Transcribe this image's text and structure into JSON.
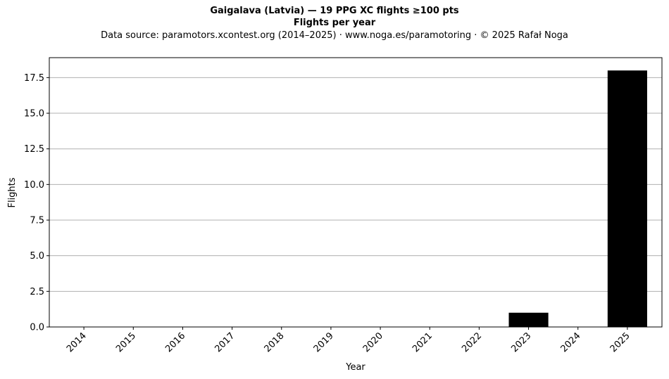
{
  "chart_data": {
    "type": "bar",
    "title": "Gaigalava (Latvia)  —  19 PPG XC flights ≥100 pts",
    "subtitle": "Flights per year",
    "source_note": "Data source: paramotors.xcontest.org (2014–2025)  ·  www.noga.es/paramotoring  ·  © 2025 Rafał Noga",
    "xlabel": "Year",
    "ylabel": "Flights",
    "categories": [
      "2014",
      "2015",
      "2016",
      "2017",
      "2018",
      "2019",
      "2020",
      "2021",
      "2022",
      "2023",
      "2024",
      "2025"
    ],
    "values": [
      0,
      0,
      0,
      0,
      0,
      0,
      0,
      0,
      0,
      1,
      0,
      18
    ],
    "ylim": [
      0,
      18.9
    ],
    "yticks": [
      0.0,
      2.5,
      5.0,
      7.5,
      10.0,
      12.5,
      15.0,
      17.5
    ],
    "ytick_labels": [
      "0.0",
      "2.5",
      "5.0",
      "7.5",
      "10.0",
      "12.5",
      "15.0",
      "17.5"
    ],
    "grid": "y",
    "bar_color": "#000000",
    "grid_color": "#b0b0b0"
  }
}
